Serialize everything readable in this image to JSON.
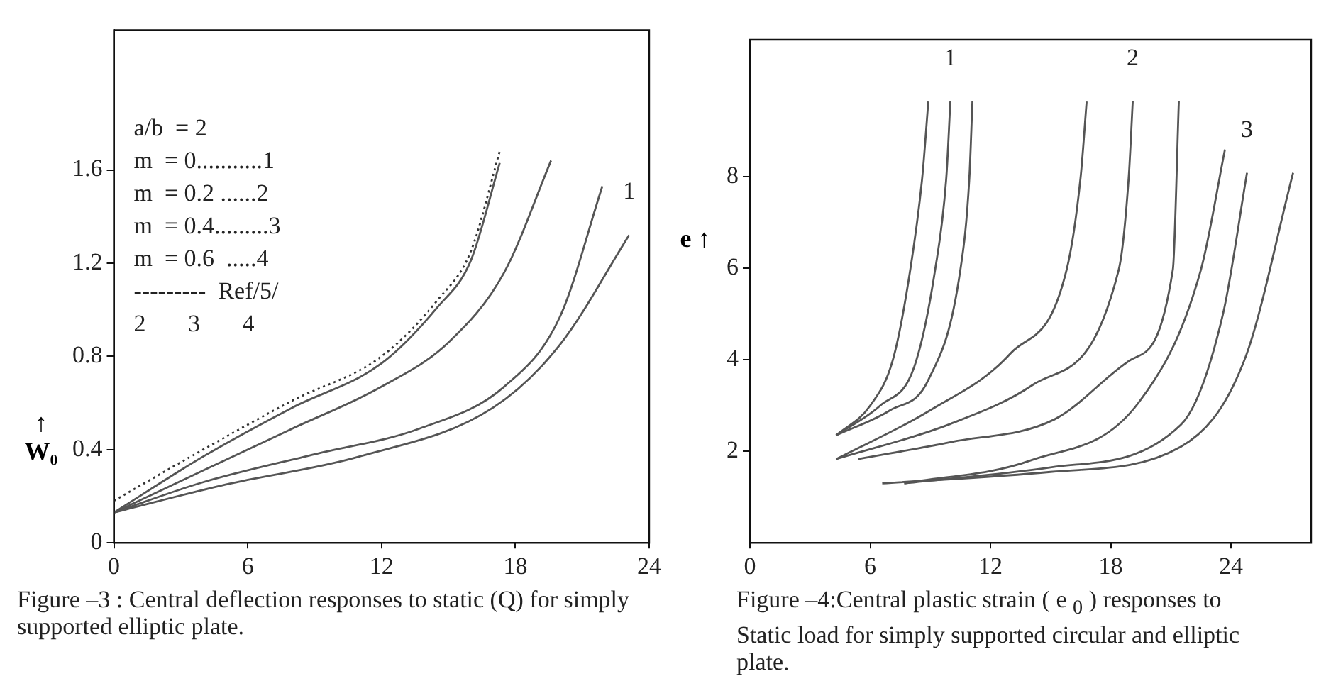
{
  "chart_data": [
    {
      "type": "line",
      "title": "Figure –3 : Central deflection responses to static (Q) for simply supported elliptic plate.",
      "ylabel": "↑ W₀",
      "xlim": [
        0,
        24
      ],
      "xticks": [
        0,
        6,
        12,
        18,
        24
      ],
      "ylim": [
        0,
        2.2
      ],
      "yticks": [
        0,
        0.4,
        0.8,
        1.2,
        1.6
      ],
      "grid": false,
      "legend": false,
      "marker": "none",
      "line_style": "solid",
      "annotations": [
        "a/b  = 2",
        "m  = 0...........1",
        "m  = 0.2 ......2",
        "m  = 0.4.........3",
        "m  = 0.6  .....4",
        "---------  Ref/5/",
        "2       3       4"
      ],
      "series": [
        {
          "name": "1",
          "color": "#555555",
          "x": [
            0,
            5,
            11,
            17,
            20,
            23.1
          ],
          "values": [
            0.13,
            0.25,
            0.37,
            0.58,
            0.85,
            1.32
          ]
        },
        {
          "color": "#555555",
          "x": [
            0,
            4,
            9,
            13.7,
            17.5,
            20,
            21.9
          ],
          "values": [
            0.13,
            0.26,
            0.38,
            0.49,
            0.67,
            0.97,
            1.53
          ]
        },
        {
          "color": "#555555",
          "x": [
            0,
            4,
            8,
            12,
            15,
            17.5,
            19.6
          ],
          "values": [
            0.13,
            0.31,
            0.49,
            0.67,
            0.86,
            1.16,
            1.64
          ]
        },
        {
          "color": "#555555",
          "x": [
            0,
            4,
            8,
            12,
            14.5,
            16,
            17.3
          ],
          "values": [
            0.13,
            0.37,
            0.58,
            0.77,
            1.01,
            1.21,
            1.63
          ]
        },
        {
          "color": "#333333",
          "line_style": "dotted",
          "x": [
            0,
            4,
            8,
            12,
            14.5,
            16,
            17.3
          ],
          "values": [
            0.18,
            0.4,
            0.61,
            0.8,
            1.04,
            1.25,
            1.68
          ]
        }
      ]
    },
    {
      "type": "line",
      "title": "Figure –4:Central plastic strain ( e $_{0}$ ) responses to Static load for simply supported circular and elliptic plate.",
      "ylabel": "e ↑",
      "xlim": [
        0,
        28
      ],
      "xticks": [
        0,
        6,
        12,
        18,
        24
      ],
      "ylim": [
        0,
        11
      ],
      "yticks": [
        2,
        4,
        6,
        8
      ],
      "grid": false,
      "legend": false,
      "marker": "none",
      "line_style": "solid",
      "series": [
        {
          "color": "#555555",
          "x": [
            4.3,
            6,
            7.15,
            8.0,
            8.6,
            8.9
          ],
          "values": [
            2.35,
            3.0,
            4.03,
            5.97,
            8,
            9.65
          ]
        },
        {
          "name": "1",
          "color": "#555555",
          "x": [
            4.3,
            6.5,
            8.2,
            9.24,
            9.8,
            10.0
          ],
          "values": [
            2.35,
            3.0,
            3.85,
            5.97,
            8,
            9.65
          ]
        },
        {
          "color": "#555555",
          "x": [
            4.3,
            7,
            8.9,
            10.5,
            10.95,
            11.1
          ],
          "values": [
            2.35,
            2.9,
            3.56,
            5.97,
            8,
            9.65
          ]
        },
        {
          "color": "#555555",
          "x": [
            4.3,
            9,
            13.0,
            15.8,
            16.5,
            16.8
          ],
          "values": [
            1.83,
            2.9,
            4.14,
            5.97,
            8,
            9.65
          ]
        },
        {
          "name": "2",
          "color": "#555555",
          "x": [
            4.3,
            10,
            14.1,
            18.4,
            18.9,
            19.1
          ],
          "values": [
            1.83,
            2.6,
            3.45,
            5.97,
            8,
            9.65
          ]
        },
        {
          "color": "#555555",
          "x": [
            5.4,
            10,
            15.2,
            19,
            21.1,
            21.4
          ],
          "values": [
            1.83,
            2.2,
            2.7,
            4.0,
            5.97,
            9.65
          ]
        },
        {
          "color": "#555555",
          "x": [
            7.7,
            14,
            19.4,
            22.5,
            23.7
          ],
          "values": [
            1.3,
            1.8,
            3.07,
            5.97,
            8.6
          ]
        },
        {
          "name": "3",
          "color": "#555555",
          "x": [
            7.7,
            15,
            21.5,
            23.6,
            24.8
          ],
          "values": [
            1.3,
            1.65,
            2.58,
            5.0,
            8.09
          ]
        },
        {
          "color": "#555555",
          "x": [
            6.6,
            15,
            21.5,
            24.7,
            27.1
          ],
          "values": [
            1.3,
            1.55,
            2.1,
            4.03,
            8.09
          ]
        }
      ]
    }
  ]
}
